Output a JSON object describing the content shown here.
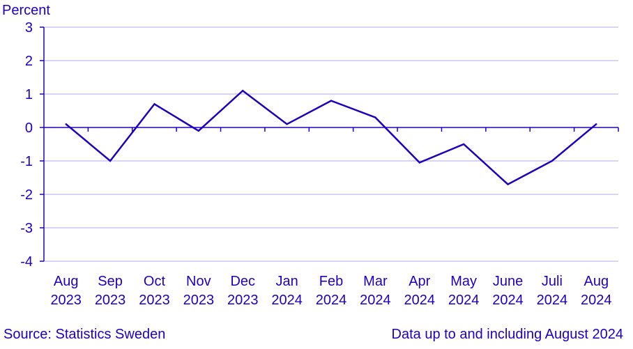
{
  "chart_data": {
    "type": "line",
    "ylabel": "Percent",
    "ylim": [
      -4,
      3
    ],
    "yticks": [
      -4,
      -3,
      -2,
      -1,
      0,
      1,
      2,
      3
    ],
    "categories": [
      [
        "Aug",
        "2023"
      ],
      [
        "Sep",
        "2023"
      ],
      [
        "Oct",
        "2023"
      ],
      [
        "Nov",
        "2023"
      ],
      [
        "Dec",
        "2023"
      ],
      [
        "Jan",
        "2024"
      ],
      [
        "Feb",
        "2024"
      ],
      [
        "Mar",
        "2024"
      ],
      [
        "Apr",
        "2024"
      ],
      [
        "May",
        "2024"
      ],
      [
        "June",
        "2024"
      ],
      [
        "Juli",
        "2024"
      ],
      [
        "Aug",
        "2024"
      ]
    ],
    "series": [
      {
        "values": [
          0.1,
          -1.0,
          0.7,
          -0.1,
          1.1,
          0.1,
          0.8,
          0.3,
          -1.05,
          -0.5,
          -1.7,
          -1.0,
          0.1
        ]
      }
    ],
    "grid": true,
    "colors": {
      "line": "#1e00be",
      "grid": "#c8c8ee",
      "axis": "#1e00be",
      "text": "#1e00be"
    }
  },
  "footer": {
    "source": "Source: Statistics Sweden",
    "note": "Data up to and including August 2024"
  }
}
